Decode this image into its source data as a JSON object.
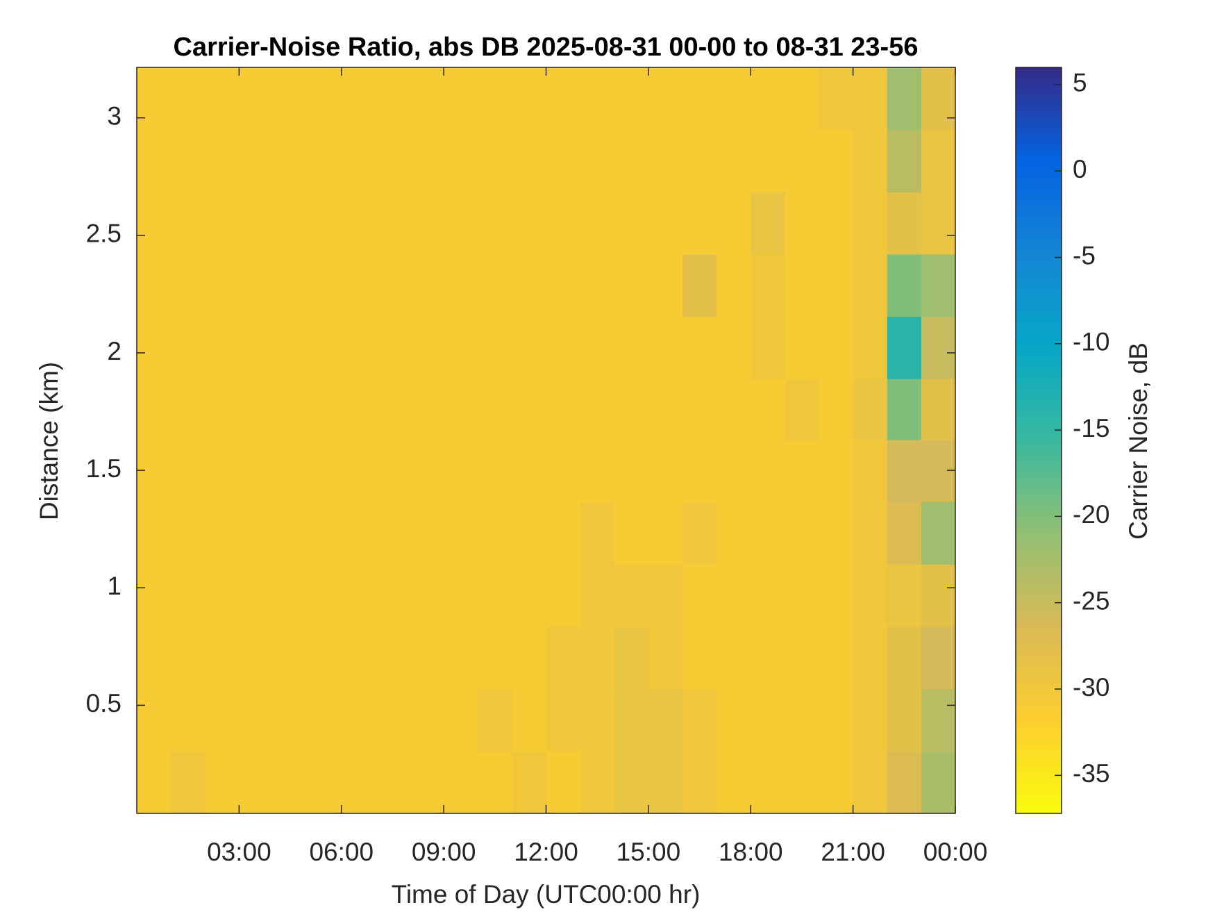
{
  "chart_data": {
    "type": "heatmap",
    "title": "Carrier-Noise Ratio, abs DB 2025-08-31 00-00 to 08-31 23-56",
    "x_label": "Time of Day (UTC00:00 hr)",
    "y_label": "Distance (km)",
    "colorbar_label": "Carrier Noise, dB",
    "x": [
      0.5,
      1.5,
      2.5,
      3.5,
      4.5,
      5.5,
      6.5,
      7.5,
      8.5,
      9.5,
      10.5,
      11.5,
      12.5,
      13.5,
      14.5,
      15.5,
      16.5,
      17.5,
      18.5,
      19.5,
      20.5,
      21.5,
      22.5,
      23.5
    ],
    "y": [
      0.17,
      0.44,
      0.7,
      0.97,
      1.23,
      1.5,
      1.76,
      2.02,
      2.29,
      2.55,
      2.82,
      3.08
    ],
    "z": [
      [
        -31,
        -30,
        -31,
        -31,
        -31,
        -31,
        -31,
        -31,
        -31,
        -31,
        -31,
        -30,
        -31,
        -30,
        -29,
        -29,
        -30,
        -31,
        -31,
        -31,
        -31,
        -30,
        -27,
        -23
      ],
      [
        -31,
        -31,
        -31,
        -31,
        -31,
        -31,
        -31,
        -31,
        -31,
        -31,
        -30,
        -31,
        -30,
        -30,
        -29,
        -29,
        -30,
        -31,
        -31,
        -31,
        -31,
        -30,
        -28,
        -24
      ],
      [
        -31,
        -31,
        -31,
        -31,
        -31,
        -31,
        -31,
        -31,
        -31,
        -31,
        -31,
        -31,
        -30,
        -30,
        -29,
        -30,
        -31,
        -31,
        -31,
        -31,
        -31,
        -30,
        -28,
        -26
      ],
      [
        -31,
        -31,
        -31,
        -31,
        -31,
        -31,
        -31,
        -31,
        -31,
        -31,
        -31,
        -31,
        -31,
        -30,
        -30,
        -30,
        -31,
        -31,
        -31,
        -31,
        -31,
        -30,
        -29,
        -28
      ],
      [
        -31,
        -31,
        -31,
        -31,
        -31,
        -31,
        -31,
        -31,
        -31,
        -31,
        -31,
        -31,
        -31,
        -30,
        -31,
        -31,
        -30,
        -31,
        -31,
        -31,
        -31,
        -30,
        -27,
        -22
      ],
      [
        -31,
        -31,
        -31,
        -31,
        -31,
        -31,
        -31,
        -31,
        -31,
        -31,
        -31,
        -31,
        -31,
        -31,
        -31,
        -31,
        -31,
        -31,
        -31,
        -31,
        -31,
        -30,
        -26,
        -26
      ],
      [
        -31,
        -31,
        -31,
        -31,
        -31,
        -31,
        -31,
        -31,
        -31,
        -31,
        -31,
        -31,
        -31,
        -31,
        -31,
        -31,
        -31,
        -31,
        -31,
        -30,
        -31,
        -29,
        -20,
        -28
      ],
      [
        -31,
        -31,
        -31,
        -31,
        -31,
        -31,
        -31,
        -31,
        -31,
        -31,
        -31,
        -31,
        -31,
        -31,
        -31,
        -31,
        -31,
        -31,
        -30,
        -31,
        -31,
        -30,
        -14,
        -25
      ],
      [
        -31,
        -31,
        -31,
        -31,
        -31,
        -31,
        -31,
        -31,
        -31,
        -31,
        -31,
        -31,
        -31,
        -31,
        -31,
        -31,
        -28,
        -31,
        -30,
        -31,
        -31,
        -30,
        -20,
        -22
      ],
      [
        -31,
        -31,
        -31,
        -31,
        -31,
        -31,
        -31,
        -31,
        -31,
        -31,
        -31,
        -31,
        -31,
        -31,
        -31,
        -31,
        -31,
        -31,
        -29,
        -31,
        -31,
        -30,
        -28,
        -29
      ],
      [
        -31,
        -31,
        -31,
        -31,
        -31,
        -31,
        -31,
        -31,
        -31,
        -31,
        -31,
        -31,
        -31,
        -31,
        -31,
        -31,
        -31,
        -31,
        -31,
        -31,
        -31,
        -30,
        -24,
        -29
      ],
      [
        -31,
        -31,
        -31,
        -31,
        -31,
        -31,
        -31,
        -31,
        -31,
        -31,
        -31,
        -31,
        -31,
        -31,
        -31,
        -31,
        -31,
        -31,
        -31,
        -31,
        -30,
        -30,
        -22,
        -28
      ]
    ],
    "xlim": [
      0,
      24
    ],
    "xticks": [
      {
        "value": 3,
        "label": "03:00"
      },
      {
        "value": 6,
        "label": "06:00"
      },
      {
        "value": 9,
        "label": "09:00"
      },
      {
        "value": 12,
        "label": "12:00"
      },
      {
        "value": 15,
        "label": "15:00"
      },
      {
        "value": 18,
        "label": "18:00"
      },
      {
        "value": 21,
        "label": "21:00"
      },
      {
        "value": 24,
        "label": "00:00"
      }
    ],
    "ylim": [
      0.04,
      3.215
    ],
    "yticks": [
      0.5,
      1,
      1.5,
      2,
      2.5,
      3
    ],
    "clim": [
      -37.2,
      6
    ],
    "cticks": [
      -35,
      -30,
      -25,
      -20,
      -15,
      -10,
      -5,
      0,
      5
    ],
    "colormap": [
      "#f9fb0e",
      "#fcce2e",
      "#d9ba56",
      "#92bf73",
      "#38b99e",
      "#06a7c6",
      "#1485d4",
      "#0363e1",
      "#352a87"
    ]
  }
}
